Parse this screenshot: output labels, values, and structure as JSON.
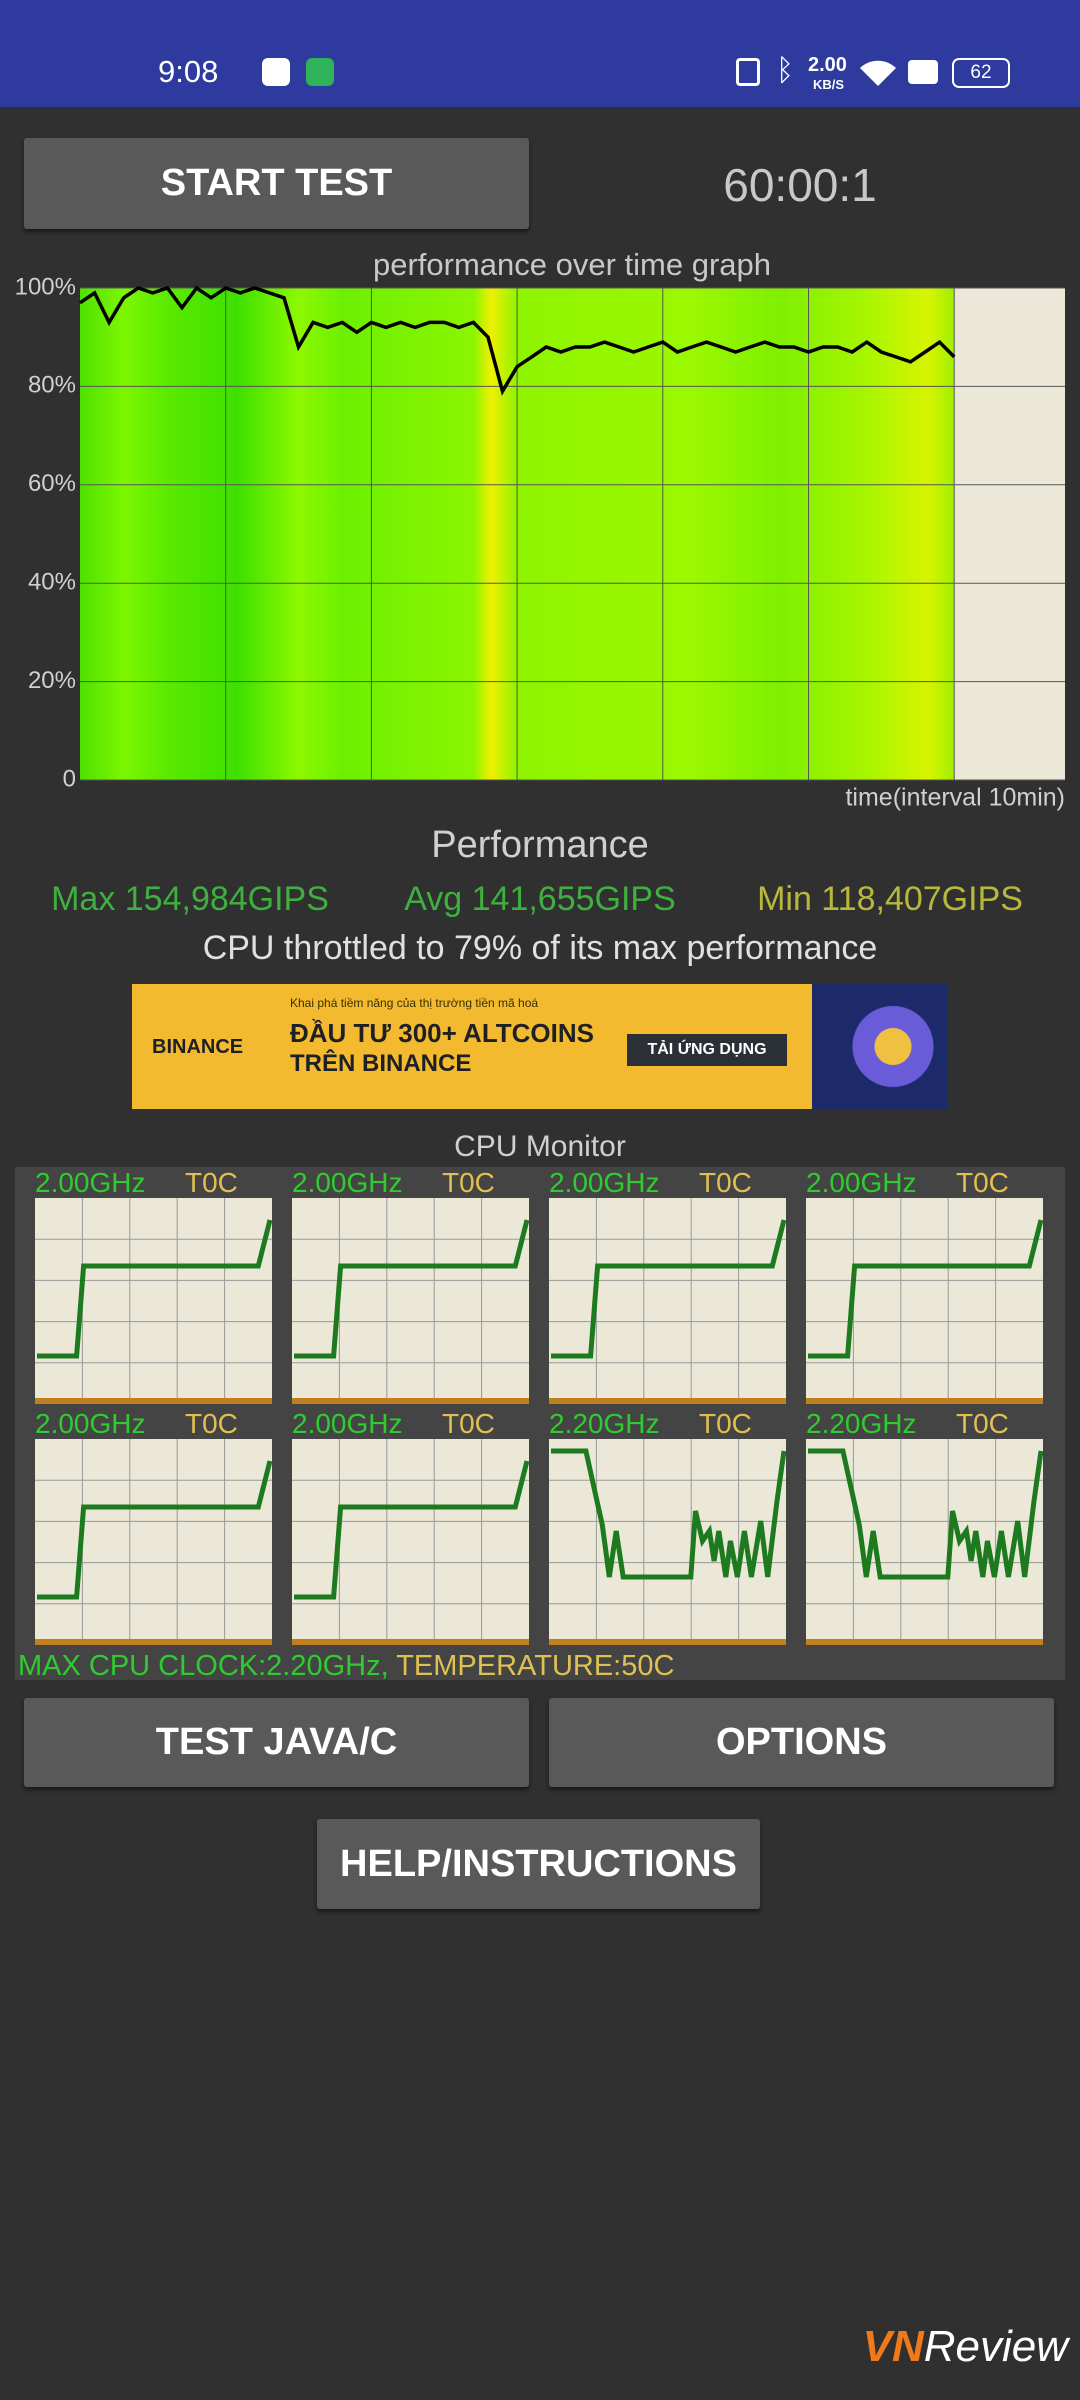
{
  "status_bar": {
    "time": "9:08",
    "net_speed": "2.00",
    "net_unit": "KB/S",
    "battery": "62"
  },
  "start_button": "START TEST",
  "timer": "60:00:1",
  "chart_data": {
    "type": "line",
    "title": "performance over time graph",
    "x_label": "time(interval 10min)",
    "ylim": [
      0,
      100
    ],
    "yticks": [
      0,
      {
        "value": 20,
        "label": "20%"
      },
      {
        "value": 40,
        "label": "40%"
      },
      {
        "value": 60,
        "label": "60%"
      },
      {
        "value": 80,
        "label": "80%"
      },
      {
        "value": 100,
        "label": "100%"
      }
    ],
    "grid": true,
    "color": "#000000",
    "values": [
      97,
      99,
      93,
      98,
      100,
      99,
      100,
      96,
      100,
      98,
      100,
      99,
      100,
      99,
      98,
      88,
      93,
      92,
      93,
      91,
      93,
      92,
      93,
      92,
      93,
      93,
      92,
      93,
      90,
      79,
      84,
      86,
      88,
      87,
      88,
      88,
      89,
      88,
      87,
      88,
      89,
      87,
      88,
      89,
      88,
      87,
      88,
      89,
      88,
      88,
      87,
      88,
      88,
      87,
      89,
      87,
      86,
      85,
      87,
      89,
      86
    ]
  },
  "performance": {
    "heading": "Performance",
    "max": "Max 154,984GIPS",
    "avg": "Avg 141,655GIPS",
    "min": "Min 118,407GIPS",
    "throttle": "CPU throttled to 79% of its max performance"
  },
  "ad": {
    "brand": "BINANCE",
    "tagline": "Khai phá tiềm năng của thị trường tiền mã hoá",
    "headline1": "ĐẦU TƯ 300+ ALTCOINS",
    "headline2": "TRÊN BINANCE",
    "cta": "TẢI ỨNG DỤNG"
  },
  "cpu_monitor": {
    "title": "CPU Monitor",
    "cores": [
      {
        "freq": "2.00GHz",
        "temp": "T0C"
      },
      {
        "freq": "2.00GHz",
        "temp": "T0C"
      },
      {
        "freq": "2.00GHz",
        "temp": "T0C"
      },
      {
        "freq": "2.00GHz",
        "temp": "T0C"
      },
      {
        "freq": "2.00GHz",
        "temp": "T0C"
      },
      {
        "freq": "2.00GHz",
        "temp": "T0C"
      },
      {
        "freq": "2.20GHz",
        "temp": "T0C"
      },
      {
        "freq": "2.20GHz",
        "temp": "T0C"
      }
    ],
    "max_clock": "MAX CPU CLOCK:2.20GHz,",
    "temperature": "TEMPERATURE:50C"
  },
  "buttons": {
    "test": "TEST JAVA/C",
    "options": "OPTIONS",
    "help": "HELP/INSTRUCTIONS"
  },
  "watermark": {
    "brand": "VN",
    "name": "Review"
  }
}
